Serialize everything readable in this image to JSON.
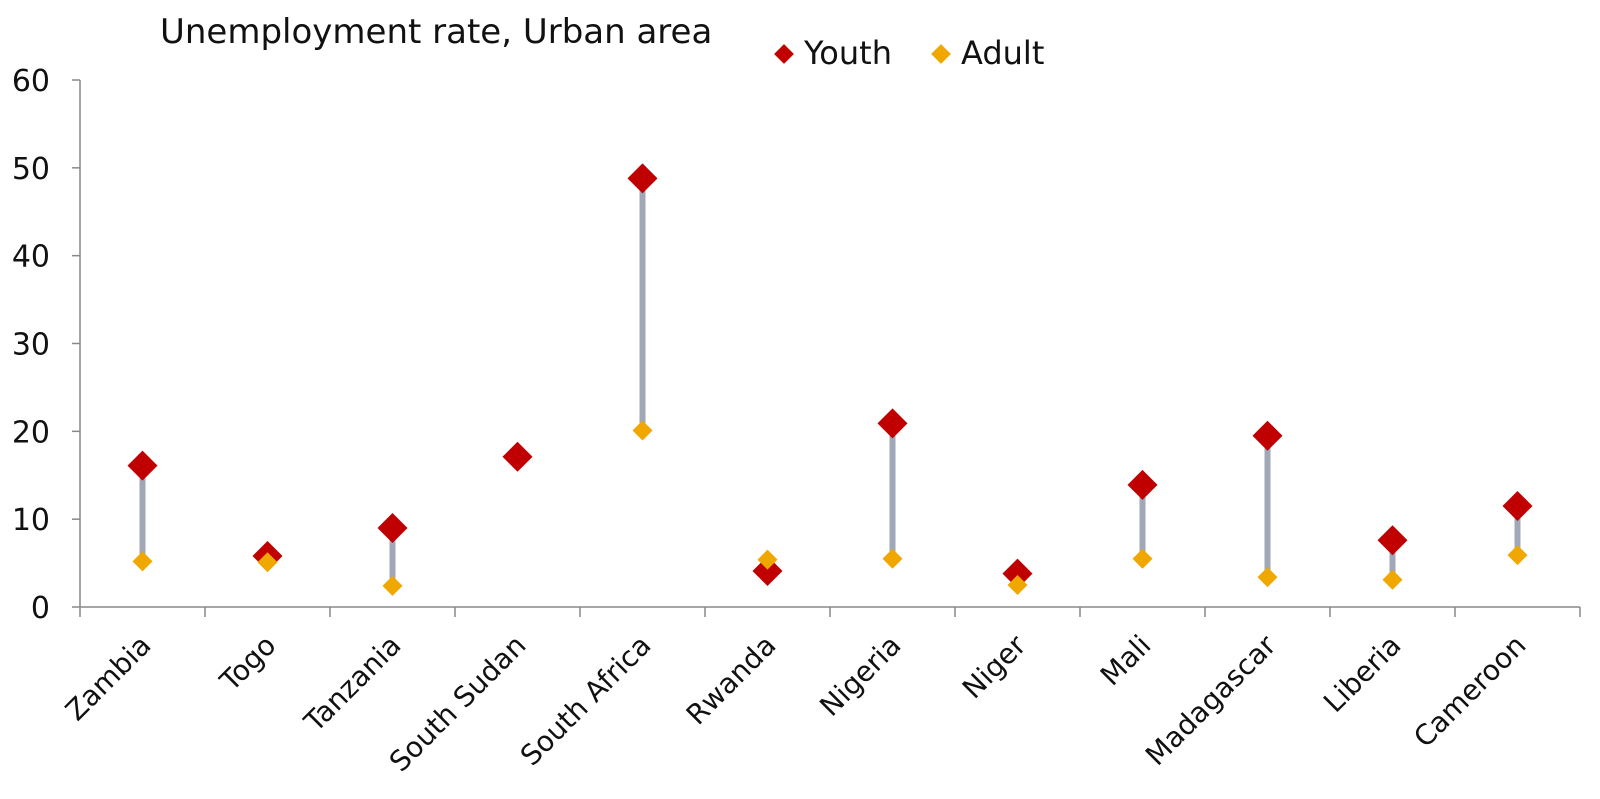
{
  "chart_data": {
    "type": "scatter",
    "title": "Unemployment rate, Urban area",
    "categories": [
      "Zambia",
      "Togo",
      "Tanzania",
      "South Sudan",
      "South Africa",
      "Rwanda",
      "Nigeria",
      "Niger",
      "Mali",
      "Madagascar",
      "Liberia",
      "Cameroon"
    ],
    "series": [
      {
        "name": "Youth",
        "values": [
          16.1,
          5.8,
          9.0,
          17.1,
          48.8,
          4.1,
          20.9,
          3.8,
          13.9,
          19.5,
          7.6,
          11.5
        ]
      },
      {
        "name": "Adult",
        "values": [
          5.2,
          5.1,
          2.4,
          null,
          20.1,
          5.4,
          5.5,
          2.5,
          5.5,
          3.4,
          3.1,
          5.9
        ]
      }
    ],
    "ylim": [
      0,
      60
    ],
    "yticks": [
      0,
      10,
      20,
      30,
      40,
      50,
      60
    ],
    "xlabel": "",
    "ylabel": "",
    "legend_position": "top",
    "grid": false,
    "colors": {
      "Youth": "#c00000",
      "Adult": "#f0a800",
      "connector": "#a0a7b6",
      "axis": "#888888"
    },
    "marker": "diamond"
  }
}
